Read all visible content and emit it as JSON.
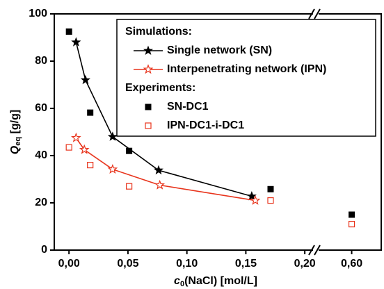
{
  "chart_data": {
    "type": "line",
    "x_label": {
      "main": "c",
      "sub": "0",
      "rest": "(NaCl) [mol/L]"
    },
    "y_label": {
      "main": "Q",
      "sub": "eq",
      "rest": " [g/g]"
    },
    "xlim": [
      [
        -0.0125,
        0.207
      ],
      [
        0.572,
        0.625
      ]
    ],
    "xticks": [
      {
        "value": 0,
        "label": "0,00"
      },
      {
        "value": 0.05,
        "label": "0,05"
      },
      {
        "value": 0.1,
        "label": "0,10"
      },
      {
        "value": 0.15,
        "label": "0,15"
      },
      {
        "value": 0.2,
        "label": "0,20"
      },
      {
        "value": 0.6,
        "label": "0,60"
      }
    ],
    "ylim": [
      0,
      100
    ],
    "yticks": [
      0,
      20,
      40,
      60,
      80,
      100
    ],
    "legend_headers": [
      "Simulations:",
      "Experiments:"
    ],
    "series": [
      {
        "name": "Single network (SN)",
        "color": "#000000",
        "marker": "star-filled",
        "line": true,
        "x": [
          0.006,
          0.014,
          0.037,
          0.076,
          0.155
        ],
        "values": [
          88,
          72,
          48,
          33.8,
          22.8
        ]
      },
      {
        "name": "Interpenetrating network (IPN)",
        "color": "#e8341c",
        "marker": "star-open",
        "line": true,
        "x": [
          0.006,
          0.013,
          0.037,
          0.077,
          0.158
        ],
        "values": [
          47.5,
          42.5,
          34.2,
          27.5,
          21
        ]
      },
      {
        "name": "SN-DC1",
        "color": "#000000",
        "marker": "square-filled",
        "line": false,
        "x": [
          0,
          0.018,
          0.051,
          0.171,
          0.6
        ],
        "values": [
          92.5,
          58.2,
          42,
          25.8,
          15
        ]
      },
      {
        "name": "IPN-DC1-i-DC1",
        "color": "#e8341c",
        "marker": "square-open",
        "line": false,
        "x": [
          0,
          0.018,
          0.051,
          0.171,
          0.6
        ],
        "values": [
          43.5,
          36,
          27,
          21,
          11
        ]
      }
    ]
  }
}
